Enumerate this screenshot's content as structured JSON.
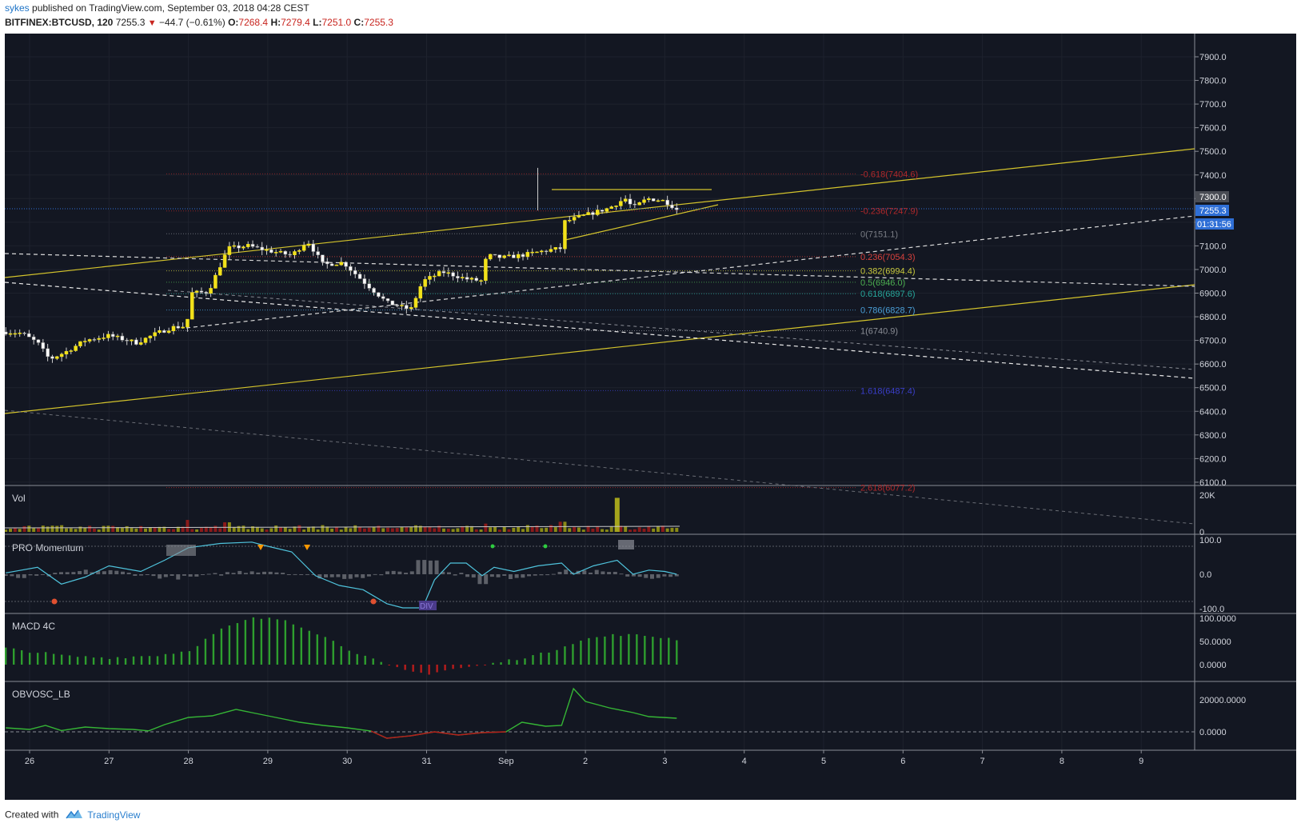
{
  "header": {
    "user": "sykes",
    "published": "published on TradingView.com, September 03, 2018 04:28 CEST",
    "symbol": "BITFINEX:BTCUSD, 120",
    "last": "7255.3",
    "change": "−44.7 (−0.61%)",
    "o_label": "O:",
    "o_value": "7268.4",
    "h_label": "H:",
    "h_value": "7279.4",
    "l_label": "L:",
    "l_value": "7251.0",
    "c_label": "C:",
    "c_value": "7255.3"
  },
  "price_axis": {
    "ticks": [
      "7900.0",
      "7800.0",
      "7700.0",
      "7600.0",
      "7500.0",
      "7400.0",
      "7300.0",
      "7200.0",
      "7100.0",
      "7000.0",
      "6900.0",
      "6800.0",
      "6700.0",
      "6600.0",
      "6500.0",
      "6400.0",
      "6300.0",
      "6200.0",
      "6100.0"
    ],
    "price_box": "7300.0",
    "last_price": "7255.3",
    "countdown": "01:31:56"
  },
  "fib_levels": [
    {
      "label": "-0.618(7404.6)",
      "color": "#b0282a"
    },
    {
      "label": "-0.236(7247.9)",
      "color": "#b0282a"
    },
    {
      "label": "0(7151.1)",
      "color": "#7a7d85"
    },
    {
      "label": "0.236(7054.3)",
      "color": "#d8413c"
    },
    {
      "label": "0.382(6994.4)",
      "color": "#c8c83c"
    },
    {
      "label": "0.5(6946.0)",
      "color": "#4caf50"
    },
    {
      "label": "0.618(6897.6)",
      "color": "#26a69a"
    },
    {
      "label": "0.786(6828.7)",
      "color": "#4a9fd8"
    },
    {
      "label": "1(6740.9)",
      "color": "#8a8d95"
    },
    {
      "label": "1.618(6487.4)",
      "color": "#3a3ec8"
    },
    {
      "label": "2.618(6077.2)",
      "color": "#b0282a"
    }
  ],
  "panes": {
    "vol": {
      "title": "Vol",
      "ticks": [
        "20K",
        "0"
      ]
    },
    "momentum": {
      "title": "PRO Momentum",
      "ticks": [
        "100.0",
        "0.0",
        "-100.0"
      ],
      "div_label": "DIV"
    },
    "macd": {
      "title": "MACD 4C",
      "ticks": [
        "100.0000",
        "50.0000",
        "0.0000"
      ]
    },
    "obv": {
      "title": "OBVOSC_LB",
      "ticks": [
        "20000.0000",
        "0.0000"
      ]
    }
  },
  "time_axis": [
    "26",
    "27",
    "28",
    "29",
    "30",
    "31",
    "Sep",
    "2",
    "3",
    "4",
    "5",
    "6",
    "7",
    "8",
    "9"
  ],
  "footer": {
    "created": "Created with",
    "brand": "TradingView"
  },
  "colors": {
    "background": "#131722",
    "candle_up": "#f2e11a",
    "candle_down": "#ffffff",
    "trend_line": "#d4c42c",
    "macd_up": "#2e9e2e",
    "macd_down": "#b71c1c",
    "obv_line": "#35b535",
    "momentum_line": "#4fc3dc",
    "last_price": "#2f6fd6"
  },
  "chart_data": {
    "type": "candlestick",
    "symbol": "BITFINEX:BTCUSD",
    "interval": "120",
    "ylim": [
      6080,
      7960
    ],
    "ohlc_last": {
      "open": 7268.4,
      "high": 7279.4,
      "low": 7251.0,
      "close": 7255.3
    },
    "x_categories": [
      "26",
      "27",
      "28",
      "29",
      "30",
      "31",
      "Sep",
      "2",
      "3",
      "4",
      "5",
      "6",
      "7",
      "8",
      "9"
    ],
    "close_path": [
      [
        25.55,
        6740
      ],
      [
        25.9,
        6730
      ],
      [
        26.1,
        6690
      ],
      [
        26.25,
        6620
      ],
      [
        26.45,
        6650
      ],
      [
        26.7,
        6700
      ],
      [
        27.0,
        6720
      ],
      [
        27.35,
        6690
      ],
      [
        27.6,
        6730
      ],
      [
        27.8,
        6755
      ],
      [
        27.98,
        6760
      ],
      [
        28.02,
        6900
      ],
      [
        28.25,
        6905
      ],
      [
        28.5,
        7090
      ],
      [
        28.75,
        7100
      ],
      [
        29.0,
        7080
      ],
      [
        29.3,
        7060
      ],
      [
        29.5,
        7120
      ],
      [
        29.7,
        7020
      ],
      [
        29.95,
        7030
      ],
      [
        30.2,
        6950
      ],
      [
        30.5,
        6860
      ],
      [
        30.8,
        6830
      ],
      [
        30.95,
        6950
      ],
      [
        31.2,
        6990
      ],
      [
        31.5,
        6960
      ],
      [
        31.72,
        6950
      ],
      [
        31.75,
        7060
      ],
      [
        31.95,
        7050
      ],
      [
        32.2,
        7060
      ],
      [
        32.5,
        7080
      ],
      [
        32.7,
        7090
      ],
      [
        32.72,
        7200
      ],
      [
        33.0,
        7230
      ],
      [
        33.3,
        7260
      ],
      [
        33.5,
        7300
      ],
      [
        33.6,
        7260
      ],
      [
        33.78,
        7300
      ],
      [
        34.0,
        7290
      ],
      [
        34.15,
        7255
      ]
    ],
    "volume_spike": {
      "x": 33.4,
      "approx_volume": 18500
    },
    "momentum_range": [
      -100,
      100
    ],
    "macd_range": [
      -40,
      110
    ],
    "obv_spike": {
      "x": 33.4,
      "approx_value": 27000
    }
  }
}
